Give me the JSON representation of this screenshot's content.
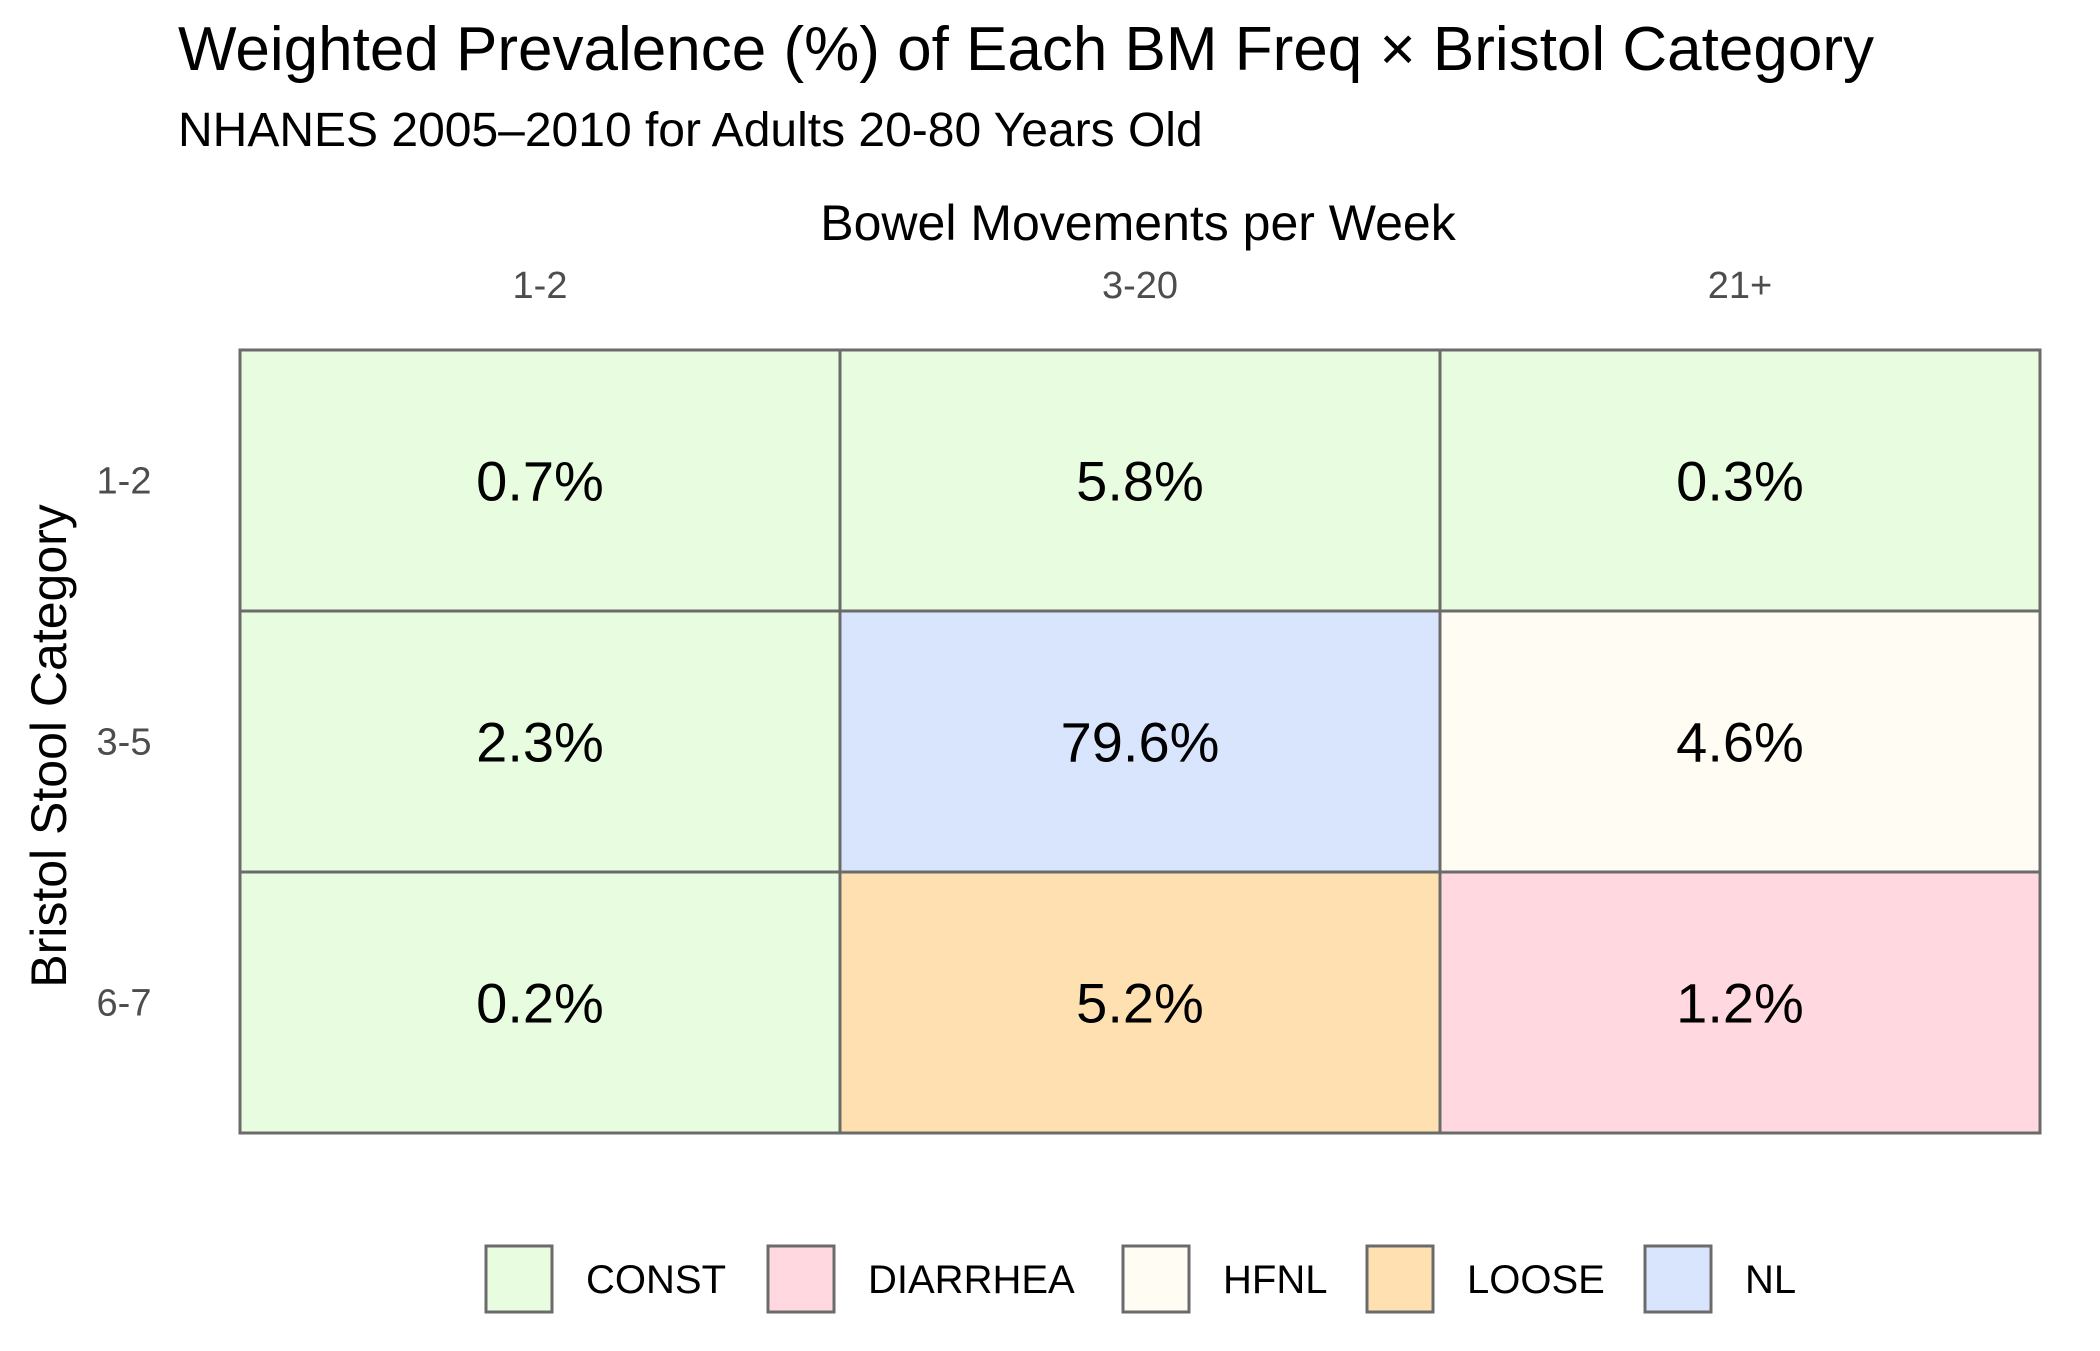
{
  "chart_data": {
    "type": "heatmap",
    "title": "Weighted Prevalence (%) of Each BM Freq × Bristol Category",
    "subtitle": "NHANES 2005–2010 for Adults 20-80 Years Old",
    "xlabel": "Bowel Movements per Week",
    "ylabel": "Bristol Stool Category",
    "x_categories": [
      "1-2",
      "3-20",
      "21+"
    ],
    "y_categories": [
      "1-2",
      "3-5",
      "6-7"
    ],
    "x_axis_position": "top",
    "grid": false,
    "legend_position": "bottom",
    "legend": [
      {
        "key": "CONST",
        "label": "CONST",
        "color": "#e8fddf"
      },
      {
        "key": "DIARRHEA",
        "label": "DIARRHEA",
        "color": "#ffd8e0"
      },
      {
        "key": "HFNL",
        "label": "HFNL",
        "color": "#fffcf3"
      },
      {
        "key": "LOOSE",
        "label": "LOOSE",
        "color": "#ffe0b0"
      },
      {
        "key": "NL",
        "label": "NL",
        "color": "#d9e4fd"
      }
    ],
    "cells": [
      {
        "x": "1-2",
        "y": "1-2",
        "value": 0.7,
        "label": "0.7%",
        "category": "CONST"
      },
      {
        "x": "3-20",
        "y": "1-2",
        "value": 5.8,
        "label": "5.8%",
        "category": "CONST"
      },
      {
        "x": "21+",
        "y": "1-2",
        "value": 0.3,
        "label": "0.3%",
        "category": "CONST"
      },
      {
        "x": "1-2",
        "y": "3-5",
        "value": 2.3,
        "label": "2.3%",
        "category": "CONST"
      },
      {
        "x": "3-20",
        "y": "3-5",
        "value": 79.6,
        "label": "79.6%",
        "category": "NL"
      },
      {
        "x": "21+",
        "y": "3-5",
        "value": 4.6,
        "label": "4.6%",
        "category": "HFNL"
      },
      {
        "x": "1-2",
        "y": "6-7",
        "value": 0.2,
        "label": "0.2%",
        "category": "CONST"
      },
      {
        "x": "3-20",
        "y": "6-7",
        "value": 5.2,
        "label": "5.2%",
        "category": "LOOSE"
      },
      {
        "x": "21+",
        "y": "6-7",
        "value": 1.2,
        "label": "1.2%",
        "category": "DIARRHEA"
      }
    ]
  }
}
